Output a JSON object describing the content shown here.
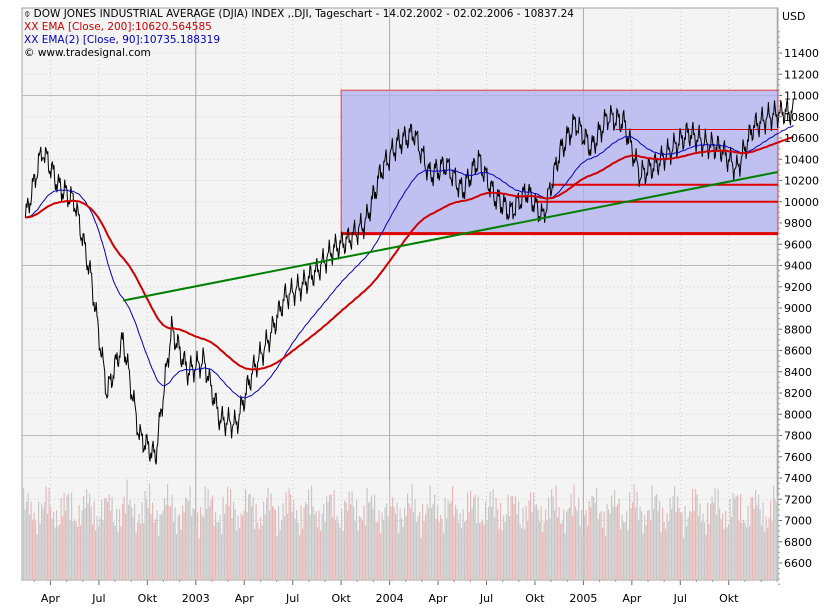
{
  "chart_data": {
    "type": "line",
    "title": "DOW JONES INDUSTRIAL AVERAGE (DJIA) INDEX ,.DJI, Tageschart - 14.02.2002 - 02.02.2006 - 10837.24",
    "legend": [
      {
        "label": "EMA [Close, 200]:10620.564585",
        "color": "#d00000",
        "marker": "XX"
      },
      {
        "label": "EMA(2) [Close, 90]:10735.188319",
        "color": "#0000c0",
        "marker": "XX"
      }
    ],
    "copyright": "© www.tradesignal.com",
    "ylabel": "USD",
    "ylim": [
      6400,
      11600
    ],
    "y_ticks": [
      11400,
      11200,
      11000,
      10800,
      10600,
      10400,
      10200,
      10000,
      9800,
      9600,
      9400,
      9200,
      9000,
      8800,
      8600,
      8400,
      8200,
      8000,
      7800,
      7600,
      7400,
      7200,
      7000,
      6800,
      6600
    ],
    "x_ticks": [
      "Apr",
      "Jul",
      "Okt",
      "2003",
      "Apr",
      "Jul",
      "Okt",
      "2004",
      "Apr",
      "Jul",
      "Okt",
      "2005",
      "Apr",
      "Jul",
      "Okt"
    ],
    "grid": true,
    "series": [
      {
        "color": "#000000",
        "x": [
          "2002-02",
          "2002-03",
          "2002-04",
          "2002-05",
          "2002-06",
          "2002-07",
          "2002-08",
          "2002-09",
          "2002-10",
          "2002-11",
          "2002-12",
          "2003-01",
          "2003-02",
          "2003-03",
          "2003-04",
          "2003-05",
          "2003-06",
          "2003-07",
          "2003-08",
          "2003-09",
          "2003-10",
          "2003-11",
          "2003-12",
          "2004-01",
          "2004-02",
          "2004-03",
          "2004-04",
          "2004-05",
          "2004-06",
          "2004-07",
          "2004-08",
          "2004-09",
          "2004-10",
          "2004-11",
          "2004-12",
          "2005-01",
          "2005-02",
          "2005-03",
          "2005-04",
          "2005-05",
          "2005-06",
          "2005-07",
          "2005-08",
          "2005-09",
          "2005-10",
          "2005-11",
          "2005-12",
          "2006-01"
        ],
        "values": [
          9850,
          10500,
          10150,
          10000,
          9300,
          8200,
          8700,
          7800,
          7600,
          8800,
          8400,
          8500,
          7950,
          7900,
          8400,
          8700,
          9100,
          9200,
          9350,
          9550,
          9650,
          9800,
          10300,
          10550,
          10650,
          10250,
          10350,
          10100,
          10400,
          10050,
          9900,
          10100,
          9850,
          10450,
          10750,
          10500,
          10800,
          10750,
          10250,
          10350,
          10500,
          10650,
          10550,
          10500,
          10300,
          10700,
          10800,
          10850
        ]
      },
      {
        "name": "EMA [Close, 200]",
        "color": "#d00000"
      },
      {
        "name": "EMA(2) [Close, 90]",
        "color": "#0000c0"
      }
    ],
    "annotations": {
      "rectangle": {
        "from": "2003-10",
        "to": "2006-02",
        "low": 9700,
        "high": 11050,
        "color": "#b0b0f0"
      },
      "horizontal_lines": [
        {
          "from": "2003-10",
          "value": 9700
        },
        {
          "from": "2004-10",
          "value": 10000
        },
        {
          "from": "2004-11",
          "value": 10160
        },
        {
          "from": "2005-03",
          "value": 10680
        }
      ],
      "trend_line": {
        "from": [
          "2002-08",
          9070
        ],
        "to": [
          "2006-02",
          10280
        ],
        "color": "#008000"
      }
    }
  }
}
